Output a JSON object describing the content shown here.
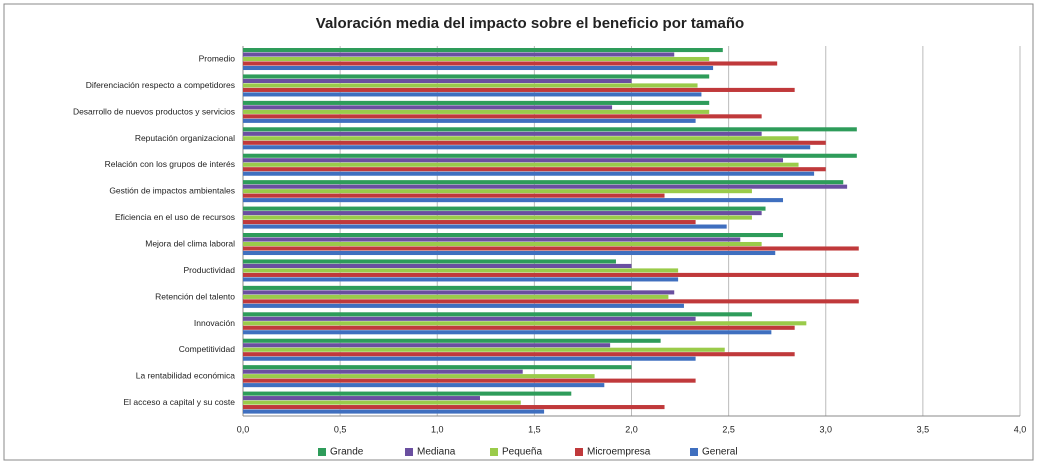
{
  "chart_data": {
    "type": "hbar",
    "title": "Valoración media del impacto sobre el beneficio por tamaño",
    "categories": [
      "Promedio",
      "Diferenciación respecto a competidores",
      "Desarrollo de nuevos productos y servicios",
      "Reputación organizacional",
      "Relación con los grupos de interés",
      "Gestión de impactos ambientales",
      "Eficiencia en el uso de recursos",
      "Mejora del clima laboral",
      "Productividad",
      "Retención del talento",
      "Innovación",
      "Competitividad",
      "La rentabilidad económica",
      "El acceso a capital y su coste"
    ],
    "series": [
      {
        "name": "Grande",
        "color": "#2e9c5a",
        "values": [
          2.47,
          2.4,
          2.4,
          3.16,
          3.16,
          3.09,
          2.69,
          2.78,
          1.92,
          2.0,
          2.62,
          2.15,
          2.0,
          1.69
        ]
      },
      {
        "name": "Mediana",
        "color": "#6a4fa0",
        "values": [
          2.22,
          2.0,
          1.9,
          2.67,
          2.78,
          3.11,
          2.67,
          2.56,
          2.0,
          2.22,
          2.33,
          1.89,
          1.44,
          1.22
        ]
      },
      {
        "name": "Pequeña",
        "color": "#9acb4a",
        "values": [
          2.4,
          2.34,
          2.4,
          2.86,
          2.86,
          2.62,
          2.62,
          2.67,
          2.24,
          2.19,
          2.9,
          2.48,
          1.81,
          1.43
        ]
      },
      {
        "name": "Microempresa",
        "color": "#c0393b",
        "values": [
          2.75,
          2.84,
          2.67,
          3.0,
          3.0,
          2.17,
          2.33,
          3.17,
          3.17,
          3.17,
          2.84,
          2.84,
          2.33,
          2.17
        ]
      },
      {
        "name": "General",
        "color": "#3f6fbf",
        "values": [
          2.42,
          2.36,
          2.33,
          2.92,
          2.94,
          2.78,
          2.49,
          2.74,
          2.24,
          2.27,
          2.72,
          2.33,
          1.86,
          1.55
        ]
      }
    ],
    "xlim": [
      0,
      4
    ],
    "xticks": [
      {
        "value": 0,
        "label": "0,0"
      },
      {
        "value": 0.5,
        "label": "0,5"
      },
      {
        "value": 1,
        "label": "1,0"
      },
      {
        "value": 1.5,
        "label": "1,5"
      },
      {
        "value": 2,
        "label": "2,0"
      },
      {
        "value": 2.5,
        "label": "2,5"
      },
      {
        "value": 3,
        "label": "3,0"
      },
      {
        "value": 3.5,
        "label": "3,5"
      },
      {
        "value": 4,
        "label": "4,0"
      }
    ],
    "grid": true,
    "legend": "bottom"
  }
}
